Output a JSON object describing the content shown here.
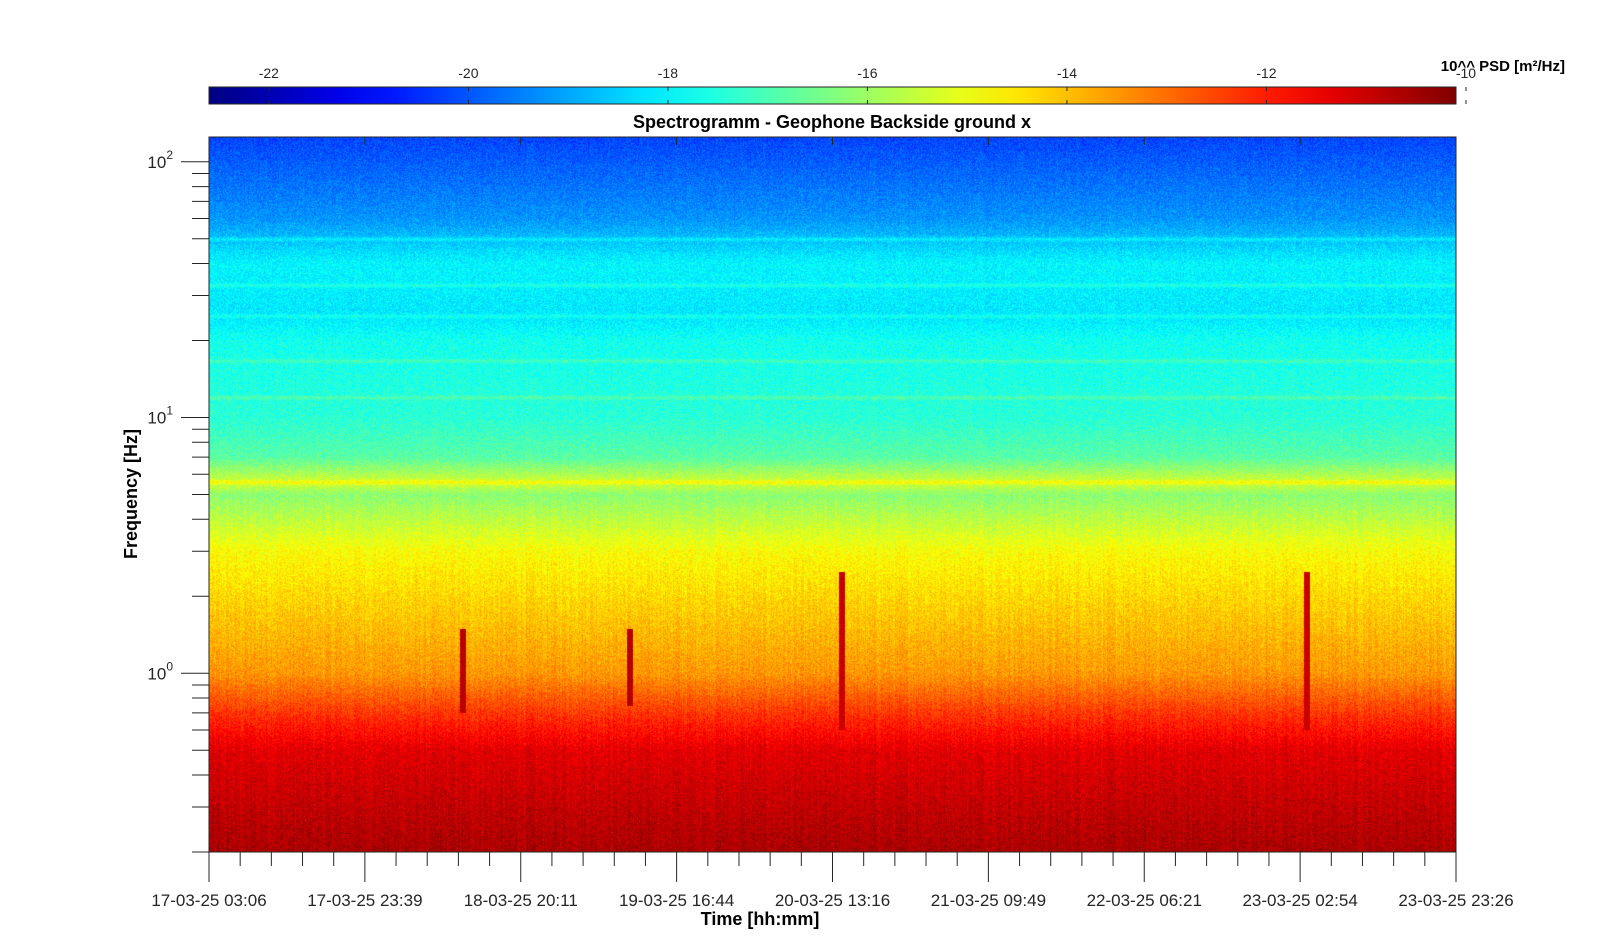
{
  "chart_data": {
    "type": "heatmap",
    "title": "Spectrogramm - Geophone Backside ground x",
    "xlabel": "Time [hh:mm]",
    "ylabel": "Frequency [Hz]",
    "x_ticks": [
      "17-03-25 03:06",
      "17-03-25 23:39",
      "18-03-25 20:11",
      "19-03-25 16:44",
      "20-03-25 13:16",
      "21-03-25 09:49",
      "22-03-25 06:21",
      "23-03-25 02:54",
      "23-03-25 23:26"
    ],
    "y_scale": "log",
    "y_ticks": [
      {
        "base": "10",
        "exp": "0",
        "value": 1
      },
      {
        "base": "10",
        "exp": "1",
        "value": 10
      },
      {
        "base": "10",
        "exp": "2",
        "value": 100
      }
    ],
    "ylim": [
      0.2,
      125
    ],
    "colorbar": {
      "label": "10^^ PSD [m²/Hz]",
      "ticks": [
        "-22",
        "-20",
        "-18",
        "-16",
        "-14",
        "-12",
        "-10"
      ],
      "tick_values": [
        -22,
        -20,
        -18,
        -16,
        -14,
        -12,
        -10
      ],
      "range": [
        -22.6,
        -10.1
      ],
      "colormap": "jet"
    },
    "spectrum_profile": [
      {
        "freq": 0.2,
        "log10_psd": -10.6
      },
      {
        "freq": 0.3,
        "log10_psd": -10.9
      },
      {
        "freq": 0.5,
        "log10_psd": -11.3
      },
      {
        "freq": 0.7,
        "log10_psd": -12.3
      },
      {
        "freq": 1.0,
        "log10_psd": -13.5
      },
      {
        "freq": 2.0,
        "log10_psd": -14.3
      },
      {
        "freq": 3.0,
        "log10_psd": -14.8
      },
      {
        "freq": 5.0,
        "log10_psd": -16.2
      },
      {
        "freq": 5.6,
        "log10_psd": -15.3
      },
      {
        "freq": 7.0,
        "log10_psd": -16.8
      },
      {
        "freq": 10.0,
        "log10_psd": -17.4
      },
      {
        "freq": 20.0,
        "log10_psd": -17.7
      },
      {
        "freq": 25.0,
        "log10_psd": -18.2
      },
      {
        "freq": 40.0,
        "log10_psd": -18.0
      },
      {
        "freq": 60.0,
        "log10_psd": -19.2
      },
      {
        "freq": 125.0,
        "log10_psd": -20.2
      }
    ],
    "narrowband_lines_hz": [
      5.6,
      12,
      16.7,
      25,
      33,
      50
    ],
    "transient_events": [
      {
        "time": "18-03-25 12:30",
        "freq_range_hz": [
          0.7,
          1.5
        ],
        "log10_psd": -10.8
      },
      {
        "time": "19-03-25 10:30",
        "freq_range_hz": [
          0.75,
          1.5
        ],
        "log10_psd": -10.8
      },
      {
        "time": "20-03-25 14:30",
        "freq_range_hz": [
          0.6,
          2.5
        ],
        "log10_psd": -11.0
      },
      {
        "time": "23-03-25 03:40",
        "freq_range_hz": [
          0.6,
          2.5
        ],
        "log10_psd": -11.0
      }
    ]
  },
  "colors": {
    "axis": "#262626",
    "background": "#ffffff"
  }
}
